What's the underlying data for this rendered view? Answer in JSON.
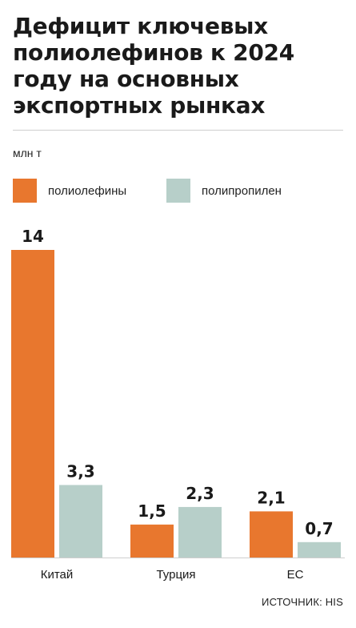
{
  "title": "Дефицит ключевых полиолефинов к 2024 году на основных экспортных рынках",
  "unit": "млн т",
  "source": "ИСТОЧНИК: HIS",
  "colors": {
    "polyolefins": "#e8772e",
    "polypropylene": "#b7cfc9",
    "text": "#1a1a1a",
    "axis": "#cfcfcf"
  },
  "chart_data": {
    "type": "bar",
    "categories": [
      "Китай",
      "Турция",
      "ЕС"
    ],
    "series": [
      {
        "name": "полиолефины",
        "values": [
          14,
          1.5,
          2.1
        ],
        "labels": [
          "14",
          "1,5",
          "2,1"
        ]
      },
      {
        "name": "полипропилен",
        "values": [
          3.3,
          2.3,
          0.7
        ],
        "labels": [
          "3,3",
          "2,3",
          "0,7"
        ]
      }
    ],
    "ylim": [
      0,
      14
    ],
    "grid": false,
    "legend": "top-left"
  }
}
